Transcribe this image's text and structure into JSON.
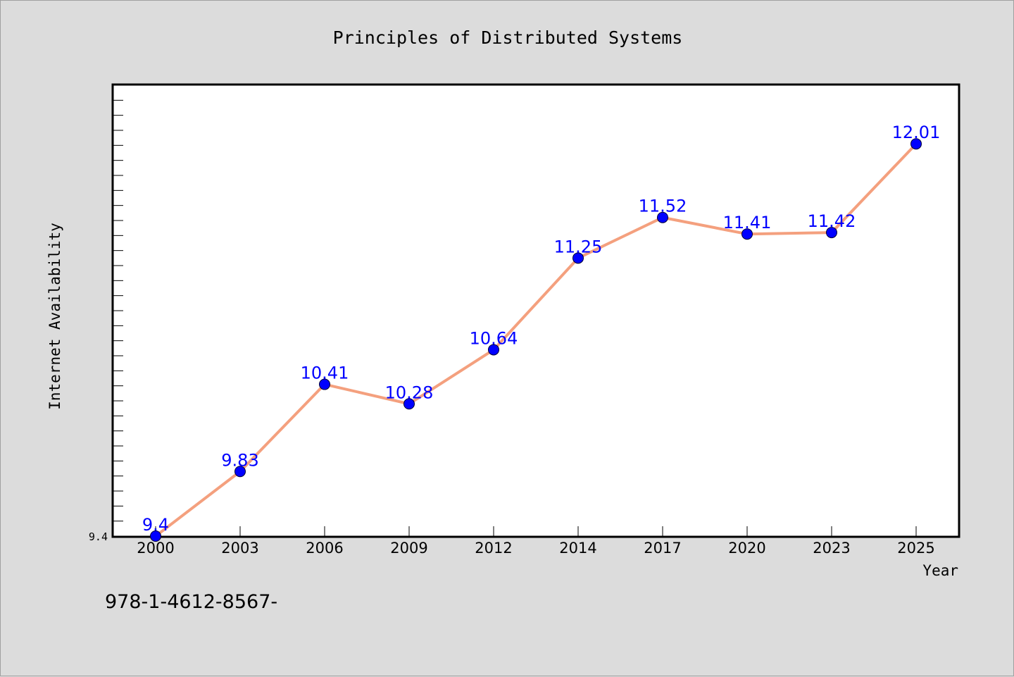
{
  "chart_data": {
    "type": "line",
    "title": "Principles of Distributed Systems",
    "xlabel": "Year",
    "ylabel": "Internet Availability",
    "categories": [
      "2000",
      "2003",
      "2006",
      "2009",
      "2012",
      "2014",
      "2017",
      "2020",
      "2023",
      "2025"
    ],
    "values": [
      9.4,
      9.83,
      10.41,
      10.28,
      10.64,
      11.25,
      11.52,
      11.41,
      11.42,
      12.01
    ],
    "data_labels": [
      "9.4",
      "9.83",
      "10.41",
      "10.28",
      "10.64",
      "11.25",
      "11.52",
      "11.41",
      "11.42",
      "12.01"
    ],
    "y_tick_label": "9.4",
    "ylim": [
      9.4,
      12.4
    ],
    "grid": false,
    "line_color": "#f4a07e",
    "marker_color": "#0000ff",
    "label_color": "#0000ff"
  },
  "footer": {
    "text": "978-1-4612-8567-"
  }
}
